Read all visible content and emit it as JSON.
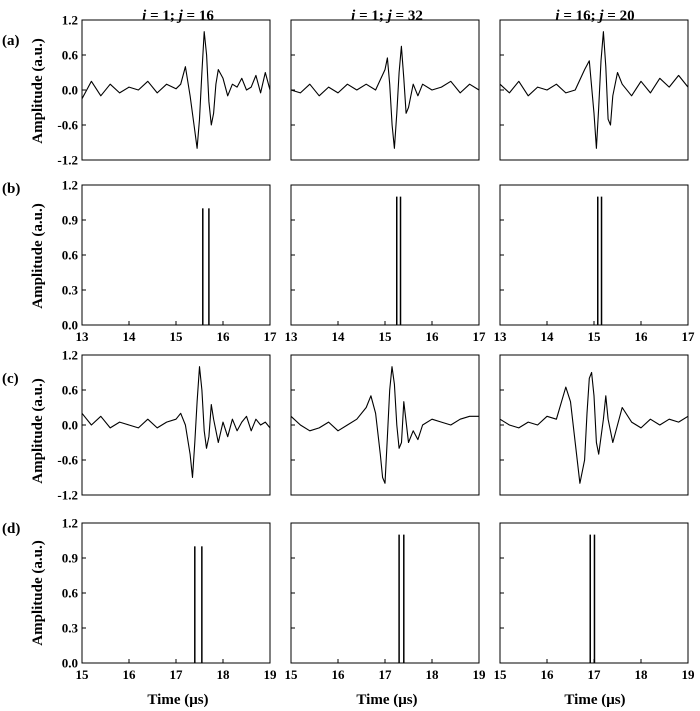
{
  "figure": {
    "column_titles": [
      {
        "i_sym": "i",
        "i_val": " = 1; ",
        "j_sym": "j",
        "j_val": " = 16"
      },
      {
        "i_sym": "i",
        "i_val": " = 1; ",
        "j_sym": "j",
        "j_val": " = 32"
      },
      {
        "i_sym": "i",
        "i_val": " = 16; ",
        "j_sym": "j",
        "j_val": " = 20"
      }
    ],
    "row_labels": [
      "(a)",
      "(b)",
      "(c)",
      "(d)"
    ],
    "ylabel": "Amplitude (a.u.)",
    "xlabel": "Time (μs)"
  },
  "chart_data": [
    {
      "row": 0,
      "col": 0,
      "type": "line",
      "xlim": [
        13,
        17
      ],
      "ylim": [
        -1.2,
        1.2
      ],
      "yticks": [
        -1.2,
        -0.6,
        0.0,
        0.6,
        1.2
      ],
      "x": [
        13.0,
        13.2,
        13.4,
        13.6,
        13.8,
        14.0,
        14.2,
        14.4,
        14.6,
        14.8,
        15.0,
        15.1,
        15.2,
        15.3,
        15.4,
        15.45,
        15.5,
        15.55,
        15.6,
        15.65,
        15.7,
        15.75,
        15.8,
        15.85,
        15.9,
        16.0,
        16.1,
        16.2,
        16.3,
        16.4,
        16.5,
        16.6,
        16.7,
        16.8,
        16.9,
        17.0
      ],
      "y": [
        -0.15,
        0.15,
        -0.1,
        0.1,
        -0.05,
        0.05,
        0.0,
        0.15,
        -0.05,
        0.1,
        0.02,
        0.1,
        0.4,
        -0.1,
        -0.7,
        -1.0,
        -0.5,
        0.3,
        1.0,
        0.6,
        -0.2,
        -0.6,
        -0.4,
        0.1,
        0.35,
        0.2,
        -0.1,
        0.1,
        0.05,
        0.2,
        0.0,
        0.05,
        0.25,
        -0.05,
        0.3,
        0.0
      ]
    },
    {
      "row": 0,
      "col": 1,
      "type": "line",
      "xlim": [
        13,
        17
      ],
      "ylim": [
        -1.2,
        1.2
      ],
      "yticks": [
        -1.2,
        -0.6,
        0.0,
        0.6,
        1.2
      ],
      "x": [
        13.0,
        13.2,
        13.4,
        13.6,
        13.8,
        14.0,
        14.2,
        14.4,
        14.6,
        14.8,
        15.0,
        15.05,
        15.1,
        15.15,
        15.2,
        15.25,
        15.3,
        15.35,
        15.4,
        15.45,
        15.5,
        15.6,
        15.7,
        15.8,
        16.0,
        16.2,
        16.4,
        16.6,
        16.8,
        17.0
      ],
      "y": [
        0.0,
        -0.05,
        0.1,
        -0.1,
        0.05,
        -0.05,
        0.1,
        0.0,
        0.1,
        0.0,
        0.35,
        0.55,
        0.1,
        -0.6,
        -1.0,
        -0.4,
        0.3,
        0.75,
        0.2,
        -0.4,
        -0.3,
        0.1,
        -0.1,
        0.1,
        0.0,
        0.05,
        0.15,
        -0.05,
        0.1,
        0.0
      ]
    },
    {
      "row": 0,
      "col": 2,
      "type": "line",
      "xlim": [
        13,
        17
      ],
      "ylim": [
        -1.2,
        1.2
      ],
      "yticks": [
        -1.2,
        -0.6,
        0.0,
        0.6,
        1.2
      ],
      "x": [
        13.0,
        13.2,
        13.4,
        13.6,
        13.8,
        14.0,
        14.2,
        14.4,
        14.6,
        14.8,
        14.9,
        15.0,
        15.05,
        15.1,
        15.15,
        15.2,
        15.25,
        15.3,
        15.35,
        15.4,
        15.5,
        15.6,
        15.8,
        16.0,
        16.2,
        16.4,
        16.6,
        16.8,
        17.0
      ],
      "y": [
        0.1,
        -0.05,
        0.15,
        -0.1,
        0.05,
        0.0,
        0.1,
        -0.05,
        0.0,
        0.35,
        0.5,
        -0.4,
        -1.0,
        -0.3,
        0.5,
        1.0,
        0.4,
        -0.5,
        -0.6,
        -0.1,
        0.3,
        0.1,
        -0.1,
        0.15,
        -0.05,
        0.2,
        0.05,
        0.25,
        0.05
      ]
    },
    {
      "row": 1,
      "col": 0,
      "type": "bar",
      "xlim": [
        13,
        17
      ],
      "ylim": [
        0,
        1.2
      ],
      "yticks": [
        0.0,
        0.3,
        0.6,
        0.9,
        1.2
      ],
      "xticks": [
        13,
        14,
        15,
        16,
        17
      ],
      "x": [
        15.57,
        15.7
      ],
      "y": [
        1.0,
        1.0
      ]
    },
    {
      "row": 1,
      "col": 1,
      "type": "bar",
      "xlim": [
        13,
        17
      ],
      "ylim": [
        0,
        1.2
      ],
      "yticks": [
        0.0,
        0.3,
        0.6,
        0.9,
        1.2
      ],
      "xticks": [
        13,
        14,
        15,
        16,
        17
      ],
      "x": [
        15.25,
        15.33
      ],
      "y": [
        1.1,
        1.1
      ]
    },
    {
      "row": 1,
      "col": 2,
      "type": "bar",
      "xlim": [
        13,
        17
      ],
      "ylim": [
        0,
        1.2
      ],
      "yticks": [
        0.0,
        0.3,
        0.6,
        0.9,
        1.2
      ],
      "xticks": [
        13,
        14,
        15,
        16,
        17
      ],
      "x": [
        15.08,
        15.16
      ],
      "y": [
        1.1,
        1.1
      ]
    },
    {
      "row": 2,
      "col": 0,
      "type": "line",
      "xlim": [
        15,
        19
      ],
      "ylim": [
        -1.2,
        1.2
      ],
      "yticks": [
        -1.2,
        -0.6,
        0.0,
        0.6,
        1.2
      ],
      "x": [
        15.0,
        15.2,
        15.4,
        15.6,
        15.8,
        16.0,
        16.2,
        16.4,
        16.6,
        16.8,
        17.0,
        17.1,
        17.2,
        17.3,
        17.35,
        17.4,
        17.45,
        17.5,
        17.55,
        17.6,
        17.65,
        17.7,
        17.75,
        17.8,
        17.9,
        18.0,
        18.1,
        18.2,
        18.3,
        18.4,
        18.5,
        18.6,
        18.7,
        18.8,
        18.9,
        19.0
      ],
      "y": [
        0.2,
        0.0,
        0.15,
        -0.05,
        0.05,
        0.0,
        -0.05,
        0.1,
        -0.05,
        0.05,
        0.1,
        0.2,
        0.0,
        -0.5,
        -0.9,
        -0.3,
        0.4,
        1.0,
        0.6,
        -0.1,
        -0.4,
        -0.2,
        0.35,
        0.1,
        -0.3,
        0.05,
        -0.2,
        0.1,
        -0.1,
        0.05,
        0.15,
        -0.1,
        0.1,
        0.0,
        0.05,
        -0.05
      ]
    },
    {
      "row": 2,
      "col": 1,
      "type": "line",
      "xlim": [
        15,
        19
      ],
      "ylim": [
        -1.2,
        1.2
      ],
      "yticks": [
        -1.2,
        -0.6,
        0.0,
        0.6,
        1.2
      ],
      "x": [
        15.0,
        15.2,
        15.4,
        15.6,
        15.8,
        16.0,
        16.2,
        16.4,
        16.6,
        16.7,
        16.8,
        16.9,
        16.95,
        17.0,
        17.05,
        17.1,
        17.15,
        17.2,
        17.25,
        17.3,
        17.35,
        17.4,
        17.5,
        17.6,
        17.7,
        17.8,
        18.0,
        18.2,
        18.4,
        18.6,
        18.8,
        19.0
      ],
      "y": [
        0.15,
        0.0,
        -0.1,
        -0.05,
        0.05,
        -0.1,
        0.0,
        0.1,
        0.3,
        0.5,
        0.2,
        -0.5,
        -0.9,
        -1.0,
        -0.2,
        0.6,
        1.0,
        0.7,
        0.0,
        -0.4,
        -0.3,
        0.4,
        -0.3,
        -0.1,
        -0.25,
        0.0,
        0.1,
        0.05,
        0.0,
        0.1,
        0.15,
        0.15
      ]
    },
    {
      "row": 2,
      "col": 2,
      "type": "line",
      "xlim": [
        15,
        19
      ],
      "ylim": [
        -1.2,
        1.2
      ],
      "yticks": [
        -1.2,
        -0.6,
        0.0,
        0.6,
        1.2
      ],
      "x": [
        15.0,
        15.2,
        15.4,
        15.6,
        15.8,
        16.0,
        16.2,
        16.4,
        16.5,
        16.6,
        16.7,
        16.8,
        16.85,
        16.9,
        16.95,
        17.0,
        17.05,
        17.1,
        17.2,
        17.25,
        17.3,
        17.4,
        17.5,
        17.6,
        17.8,
        18.0,
        18.2,
        18.4,
        18.6,
        18.8,
        19.0
      ],
      "y": [
        0.1,
        0.0,
        -0.05,
        0.05,
        0.0,
        0.15,
        0.1,
        0.65,
        0.4,
        -0.3,
        -1.0,
        -0.6,
        0.2,
        0.8,
        0.9,
        0.5,
        -0.3,
        -0.5,
        0.1,
        0.5,
        0.1,
        -0.3,
        0.0,
        0.3,
        0.05,
        -0.05,
        0.1,
        0.0,
        0.1,
        0.05,
        0.15
      ]
    },
    {
      "row": 3,
      "col": 0,
      "type": "bar",
      "xlim": [
        15,
        19
      ],
      "ylim": [
        0,
        1.2
      ],
      "yticks": [
        0.0,
        0.3,
        0.6,
        0.9,
        1.2
      ],
      "xticks": [
        15,
        16,
        17,
        18,
        19
      ],
      "x": [
        17.4,
        17.55
      ],
      "y": [
        1.0,
        1.0
      ]
    },
    {
      "row": 3,
      "col": 1,
      "type": "bar",
      "xlim": [
        15,
        19
      ],
      "ylim": [
        0,
        1.2
      ],
      "yticks": [
        0.0,
        0.3,
        0.6,
        0.9,
        1.2
      ],
      "xticks": [
        15,
        16,
        17,
        18,
        19
      ],
      "x": [
        17.3,
        17.4
      ],
      "y": [
        1.1,
        1.1
      ]
    },
    {
      "row": 3,
      "col": 2,
      "type": "bar",
      "xlim": [
        15,
        19
      ],
      "ylim": [
        0,
        1.2
      ],
      "yticks": [
        0.0,
        0.3,
        0.6,
        0.9,
        1.2
      ],
      "xticks": [
        15,
        16,
        17,
        18,
        19
      ],
      "x": [
        16.92,
        17.01
      ],
      "y": [
        1.1,
        1.1
      ]
    }
  ]
}
